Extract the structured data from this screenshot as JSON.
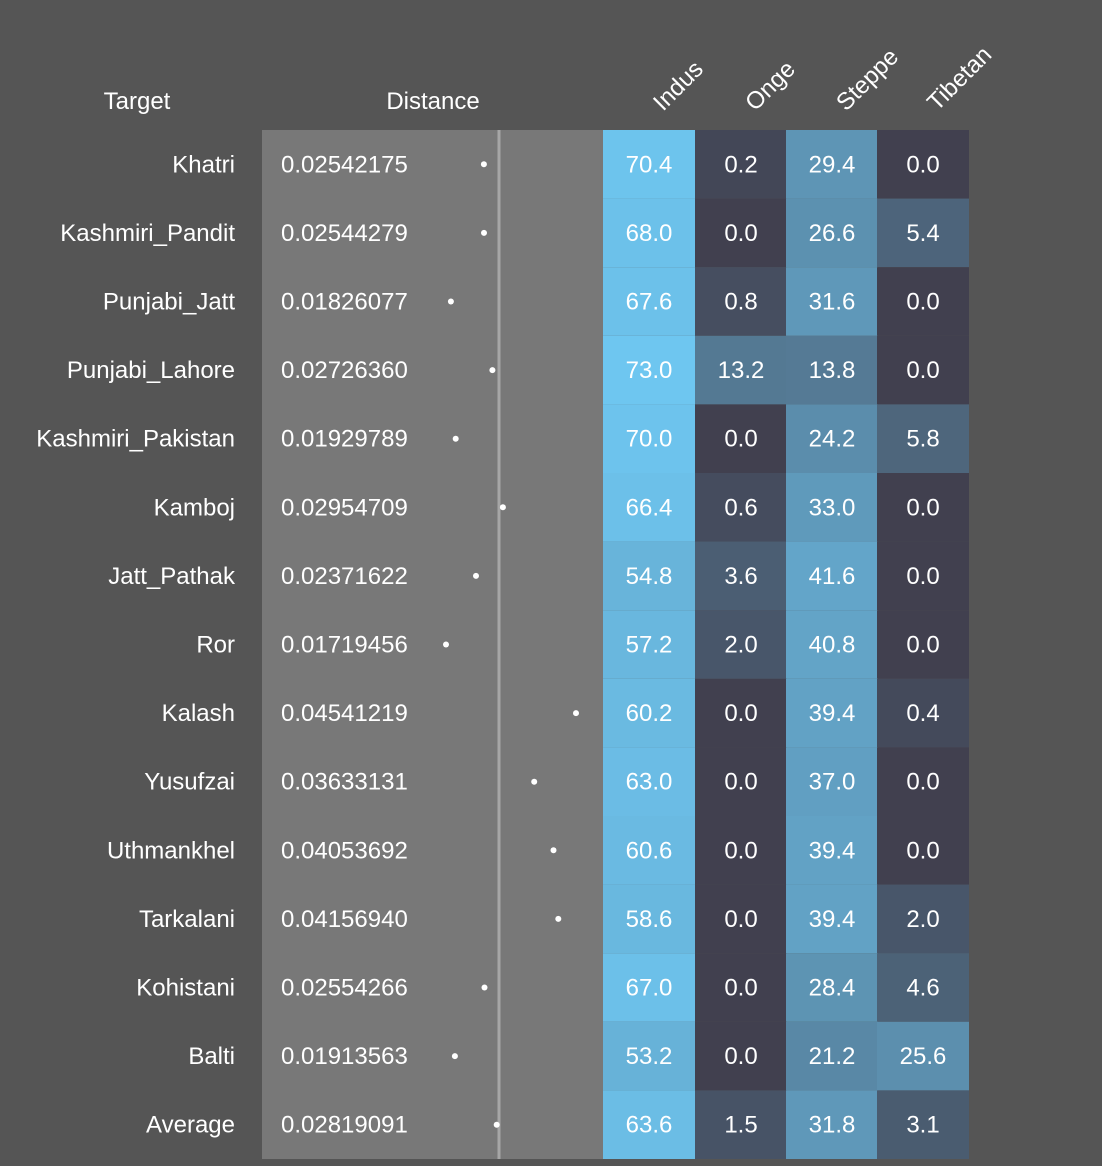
{
  "chart_data": {
    "type": "table",
    "columns": {
      "target": "Target",
      "distance": "Distance",
      "components": [
        "Indus",
        "Onge",
        "Steppe",
        "Tibetan"
      ]
    },
    "rows": [
      {
        "target": "Khatri",
        "distance": "0.02542175",
        "values": [
          "70.4",
          "0.2",
          "29.4",
          "0.0"
        ]
      },
      {
        "target": "Kashmiri_Pandit",
        "distance": "0.02544279",
        "values": [
          "68.0",
          "0.0",
          "26.6",
          "5.4"
        ]
      },
      {
        "target": "Punjabi_Jatt",
        "distance": "0.01826077",
        "values": [
          "67.6",
          "0.8",
          "31.6",
          "0.0"
        ]
      },
      {
        "target": "Punjabi_Lahore",
        "distance": "0.02726360",
        "values": [
          "73.0",
          "13.2",
          "13.8",
          "0.0"
        ]
      },
      {
        "target": "Kashmiri_Pakistan",
        "distance": "0.01929789",
        "values": [
          "70.0",
          "0.0",
          "24.2",
          "5.8"
        ]
      },
      {
        "target": "Kamboj",
        "distance": "0.02954709",
        "values": [
          "66.4",
          "0.6",
          "33.0",
          "0.0"
        ]
      },
      {
        "target": "Jatt_Pathak",
        "distance": "0.02371622",
        "values": [
          "54.8",
          "3.6",
          "41.6",
          "0.0"
        ]
      },
      {
        "target": "Ror",
        "distance": "0.01719456",
        "values": [
          "57.2",
          "2.0",
          "40.8",
          "0.0"
        ]
      },
      {
        "target": "Kalash",
        "distance": "0.04541219",
        "values": [
          "60.2",
          "0.0",
          "39.4",
          "0.4"
        ]
      },
      {
        "target": "Yusufzai",
        "distance": "0.03633131",
        "values": [
          "63.0",
          "0.0",
          "37.0",
          "0.0"
        ]
      },
      {
        "target": "Uthmankhel",
        "distance": "0.04053692",
        "values": [
          "60.6",
          "0.0",
          "39.4",
          "0.0"
        ]
      },
      {
        "target": "Tarkalani",
        "distance": "0.04156940",
        "values": [
          "58.6",
          "0.0",
          "39.4",
          "2.0"
        ]
      },
      {
        "target": "Kohistani",
        "distance": "0.02554266",
        "values": [
          "67.0",
          "0.0",
          "28.4",
          "4.6"
        ]
      },
      {
        "target": "Balti",
        "distance": "0.01913563",
        "values": [
          "53.2",
          "0.0",
          "21.2",
          "25.6"
        ]
      },
      {
        "target": "Average",
        "distance": "0.02819091",
        "values": [
          "63.6",
          "1.5",
          "31.8",
          "3.1"
        ]
      }
    ],
    "colors": {
      "background": "#555555",
      "distance_panel": "#787878",
      "reference_line": "#a6a6a6",
      "dot": "#ffffff",
      "heat_low": "#41404f",
      "heat_high": "#6ec6f0"
    }
  }
}
